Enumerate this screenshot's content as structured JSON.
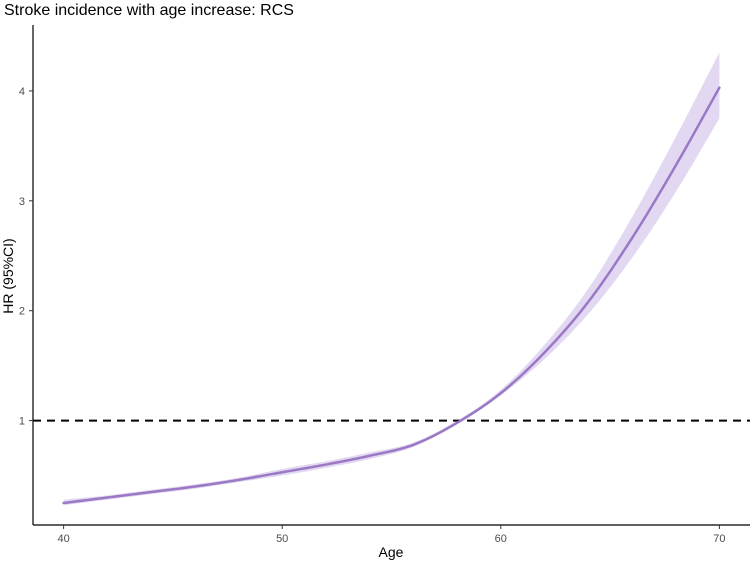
{
  "chart_data": {
    "type": "line",
    "title": "Stroke incidence with age increase: RCS",
    "xlabel": "Age",
    "ylabel": "HR (95%CI)",
    "xlim": [
      38.6,
      71.4
    ],
    "ylim": [
      0.05,
      4.6
    ],
    "x_ticks": [
      40,
      50,
      60,
      70
    ],
    "y_ticks": [
      1,
      2,
      3,
      4
    ],
    "reference_line": {
      "y": 1,
      "style": "dashed",
      "color": "#000000"
    },
    "colors": {
      "line": "#9b78c5",
      "band": "#ddd1ee"
    },
    "series": [
      {
        "name": "HR",
        "x": [
          40,
          42,
          44,
          46,
          48,
          50,
          52,
          54,
          56,
          58,
          60,
          62,
          64,
          66,
          68,
          70
        ],
        "y": [
          0.25,
          0.3,
          0.35,
          0.4,
          0.46,
          0.53,
          0.6,
          0.68,
          0.78,
          0.98,
          1.25,
          1.62,
          2.08,
          2.66,
          3.32,
          4.03
        ],
        "lower": [
          0.23,
          0.28,
          0.33,
          0.38,
          0.44,
          0.5,
          0.57,
          0.65,
          0.76,
          0.97,
          1.23,
          1.56,
          1.97,
          2.48,
          3.08,
          3.75
        ],
        "upper": [
          0.28,
          0.32,
          0.37,
          0.42,
          0.48,
          0.56,
          0.63,
          0.71,
          0.8,
          1.0,
          1.28,
          1.69,
          2.2,
          2.85,
          3.58,
          4.35
        ]
      }
    ]
  }
}
